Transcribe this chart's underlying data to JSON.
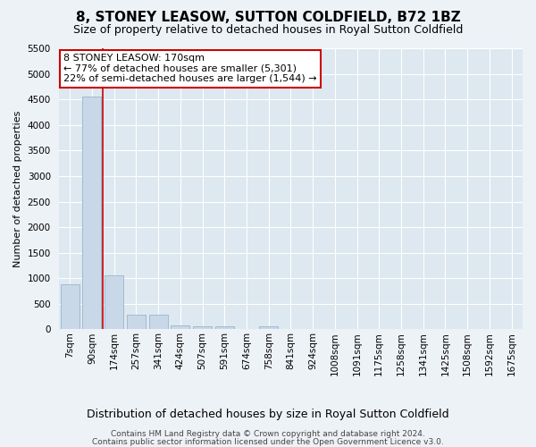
{
  "title": "8, STONEY LEASOW, SUTTON COLDFIELD, B72 1BZ",
  "subtitle": "Size of property relative to detached houses in Royal Sutton Coldfield",
  "xlabel": "Distribution of detached houses by size in Royal Sutton Coldfield",
  "ylabel": "Number of detached properties",
  "bin_labels": [
    "7sqm",
    "90sqm",
    "174sqm",
    "257sqm",
    "341sqm",
    "424sqm",
    "507sqm",
    "591sqm",
    "674sqm",
    "758sqm",
    "841sqm",
    "924sqm",
    "1008sqm",
    "1091sqm",
    "1175sqm",
    "1258sqm",
    "1341sqm",
    "1425sqm",
    "1508sqm",
    "1592sqm",
    "1675sqm"
  ],
  "bar_values": [
    880,
    4550,
    1060,
    290,
    290,
    75,
    65,
    55,
    0,
    65,
    0,
    0,
    0,
    0,
    0,
    0,
    0,
    0,
    0,
    0,
    0
  ],
  "bar_color": "#c8d8e8",
  "bar_edgecolor": "#9ab4cc",
  "vline_color": "#cc0000",
  "vline_x": 1.5,
  "annotation_text": "8 STONEY LEASOW: 170sqm\n← 77% of detached houses are smaller (5,301)\n22% of semi-detached houses are larger (1,544) →",
  "annotation_box_color": "#ffffff",
  "annotation_box_edge": "#cc0000",
  "ylim": [
    0,
    5500
  ],
  "yticks": [
    0,
    500,
    1000,
    1500,
    2000,
    2500,
    3000,
    3500,
    4000,
    4500,
    5000,
    5500
  ],
  "footer_line1": "Contains HM Land Registry data © Crown copyright and database right 2024.",
  "footer_line2": "Contains public sector information licensed under the Open Government Licence v3.0.",
  "bg_color": "#edf2f7",
  "plot_bg_color": "#dde8f0",
  "grid_color": "#ffffff",
  "title_fontsize": 11,
  "subtitle_fontsize": 9,
  "ylabel_fontsize": 8,
  "xlabel_fontsize": 9,
  "tick_fontsize": 7.5,
  "annotation_fontsize": 8,
  "footer_fontsize": 6.5
}
